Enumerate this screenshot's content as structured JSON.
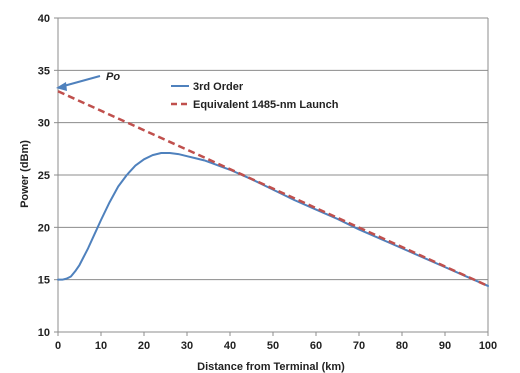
{
  "chart_data": {
    "type": "line",
    "xlabel": "Distance from Terminal  (km)",
    "ylabel": "Power (dBm)",
    "xlim": [
      0,
      100
    ],
    "ylim": [
      10,
      40
    ],
    "x_ticks": [
      0,
      10,
      20,
      30,
      40,
      50,
      60,
      70,
      80,
      90,
      100
    ],
    "y_ticks": [
      10,
      15,
      20,
      25,
      30,
      35,
      40
    ],
    "x_tick_labels": [
      "0",
      "10",
      "20",
      "30",
      "40",
      "50",
      "60",
      "70",
      "80",
      "90",
      "100"
    ],
    "y_tick_labels": [
      "10",
      "15",
      "20",
      "25",
      "30",
      "35",
      "40"
    ],
    "grid": "horizontal",
    "legend_position": "top-center",
    "series": [
      {
        "name": "3rd Order",
        "color": "#4f81bd",
        "style": "solid",
        "x": [
          0,
          1,
          2,
          3,
          4,
          5,
          6,
          7,
          8,
          9,
          10,
          12,
          14,
          16,
          18,
          20,
          22,
          24,
          26,
          28,
          30,
          32,
          34,
          36,
          38,
          40,
          45,
          50,
          55,
          60,
          65,
          70,
          75,
          80,
          85,
          90,
          95,
          100
        ],
        "y": [
          15.0,
          15.0,
          15.1,
          15.3,
          15.8,
          16.4,
          17.2,
          18.0,
          18.9,
          19.8,
          20.7,
          22.4,
          23.9,
          25.0,
          25.9,
          26.5,
          26.9,
          27.1,
          27.1,
          27.0,
          26.8,
          26.6,
          26.4,
          26.1,
          25.8,
          25.5,
          24.6,
          23.6,
          22.6,
          21.7,
          20.8,
          19.8,
          18.9,
          18.0,
          17.1,
          16.2,
          15.3,
          14.4
        ]
      },
      {
        "name": "Equivalent 1485-nm Launch",
        "color": "#c0504d",
        "style": "dashed",
        "x": [
          0,
          100
        ],
        "y": [
          33.0,
          14.4
        ]
      }
    ],
    "annotations": [
      {
        "text": "Po",
        "target_x": 0,
        "target_y": 33.2
      }
    ]
  }
}
